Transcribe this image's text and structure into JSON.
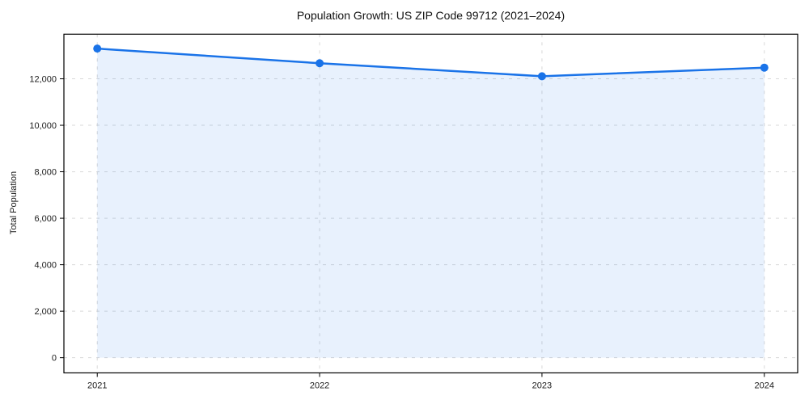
{
  "figure": {
    "title": "Population Growth: US ZIP Code 99712 (2021–2024)",
    "background": "#ffffff"
  },
  "chart_data": {
    "type": "line",
    "title": "Population Growth: US ZIP Code 99712 (2021–2024)",
    "xlabel": "",
    "ylabel": "Total Population",
    "x": [
      2021,
      2022,
      2023,
      2024
    ],
    "series": [
      {
        "name": "Total Population",
        "values": [
          13300,
          12670,
          12110,
          12480
        ]
      }
    ],
    "xlim": [
      2020.85,
      2024.15
    ],
    "ylim": [
      -655,
      13920
    ],
    "xticks": {
      "values": [
        2021,
        2022,
        2023,
        2024
      ],
      "labels": [
        "2021",
        "2022",
        "2023",
        "2024"
      ]
    },
    "yticks": {
      "values": [
        0,
        2000,
        4000,
        6000,
        8000,
        10000,
        12000
      ],
      "labels": [
        "0",
        "2,000",
        "4,000",
        "6,000",
        "8,000",
        "10,000",
        "12,000"
      ]
    },
    "grid": "dashed-both",
    "legend": "none",
    "line_color": "#1a73e8",
    "marker": "circle",
    "marker_radius": 5,
    "line_width": 2.5,
    "area_fill": "#1a73e8",
    "area_opacity": 0.1,
    "fill_to": 0,
    "grid_color": "#d9d9d9",
    "spine_color": "#000000",
    "tick_color": "#1a1a1a"
  }
}
